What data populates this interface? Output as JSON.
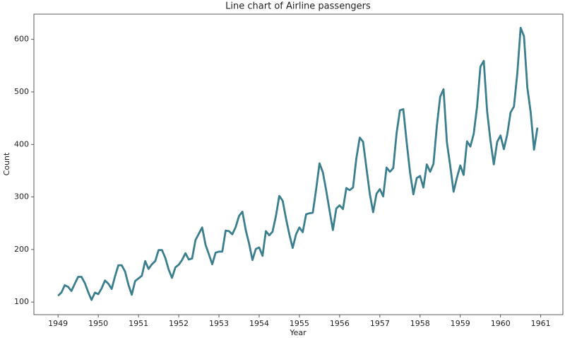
{
  "chart_data": {
    "type": "line",
    "title": "Line chart of Airline passengers",
    "x_label": "Year",
    "y_label": "Count",
    "color": "#3b7f8e",
    "x": [
      1949,
      1949.083,
      1949.167,
      1949.25,
      1949.333,
      1949.417,
      1949.5,
      1949.583,
      1949.667,
      1949.75,
      1949.833,
      1949.917,
      1950,
      1950.083,
      1950.167,
      1950.25,
      1950.333,
      1950.417,
      1950.5,
      1950.583,
      1950.667,
      1950.75,
      1950.833,
      1950.917,
      1951,
      1951.083,
      1951.167,
      1951.25,
      1951.333,
      1951.417,
      1951.5,
      1951.583,
      1951.667,
      1951.75,
      1951.833,
      1951.917,
      1952,
      1952.083,
      1952.167,
      1952.25,
      1952.333,
      1952.417,
      1952.5,
      1952.583,
      1952.667,
      1952.75,
      1952.833,
      1952.917,
      1953,
      1953.083,
      1953.167,
      1953.25,
      1953.333,
      1953.417,
      1953.5,
      1953.583,
      1953.667,
      1953.75,
      1953.833,
      1953.917,
      1954,
      1954.083,
      1954.167,
      1954.25,
      1954.333,
      1954.417,
      1954.5,
      1954.583,
      1954.667,
      1954.75,
      1954.833,
      1954.917,
      1955,
      1955.083,
      1955.167,
      1955.25,
      1955.333,
      1955.417,
      1955.5,
      1955.583,
      1955.667,
      1955.75,
      1955.833,
      1955.917,
      1956,
      1956.083,
      1956.167,
      1956.25,
      1956.333,
      1956.417,
      1956.5,
      1956.583,
      1956.667,
      1956.75,
      1956.833,
      1956.917,
      1957,
      1957.083,
      1957.167,
      1957.25,
      1957.333,
      1957.417,
      1957.5,
      1957.583,
      1957.667,
      1957.75,
      1957.833,
      1957.917,
      1958,
      1958.083,
      1958.167,
      1958.25,
      1958.333,
      1958.417,
      1958.5,
      1958.583,
      1958.667,
      1958.75,
      1958.833,
      1958.917,
      1959,
      1959.083,
      1959.167,
      1959.25,
      1959.333,
      1959.417,
      1959.5,
      1959.583,
      1959.667,
      1959.75,
      1959.833,
      1959.917,
      1960,
      1960.083,
      1960.167,
      1960.25,
      1960.333,
      1960.417,
      1960.5,
      1960.583,
      1960.667,
      1960.75,
      1960.833,
      1960.917
    ],
    "values": [
      112,
      118,
      132,
      129,
      121,
      135,
      148,
      148,
      136,
      119,
      104,
      118,
      115,
      126,
      141,
      135,
      125,
      149,
      170,
      170,
      158,
      133,
      114,
      140,
      145,
      150,
      178,
      163,
      172,
      178,
      199,
      199,
      184,
      162,
      146,
      166,
      171,
      180,
      193,
      181,
      183,
      218,
      230,
      242,
      209,
      191,
      172,
      194,
      196,
      196,
      236,
      235,
      229,
      243,
      264,
      272,
      237,
      211,
      180,
      201,
      204,
      188,
      235,
      227,
      234,
      264,
      302,
      293,
      259,
      229,
      203,
      229,
      242,
      233,
      267,
      269,
      270,
      315,
      364,
      347,
      312,
      274,
      237,
      278,
      284,
      277,
      317,
      313,
      318,
      374,
      413,
      405,
      355,
      306,
      271,
      306,
      315,
      301,
      356,
      348,
      355,
      422,
      465,
      467,
      404,
      347,
      305,
      336,
      340,
      318,
      362,
      348,
      363,
      435,
      491,
      505,
      404,
      359,
      310,
      337,
      360,
      342,
      406,
      396,
      420,
      472,
      548,
      559,
      463,
      407,
      362,
      405,
      417,
      391,
      419,
      461,
      472,
      535,
      622,
      606,
      508,
      461,
      390,
      432
    ],
    "xlim": [
      1948.4,
      1961.55
    ],
    "xticks": [
      1949,
      1950,
      1951,
      1952,
      1953,
      1954,
      1955,
      1956,
      1957,
      1958,
      1959,
      1960,
      1961
    ],
    "ylim": [
      76,
      648
    ],
    "yticks": [
      100,
      200,
      300,
      400,
      500,
      600
    ]
  }
}
